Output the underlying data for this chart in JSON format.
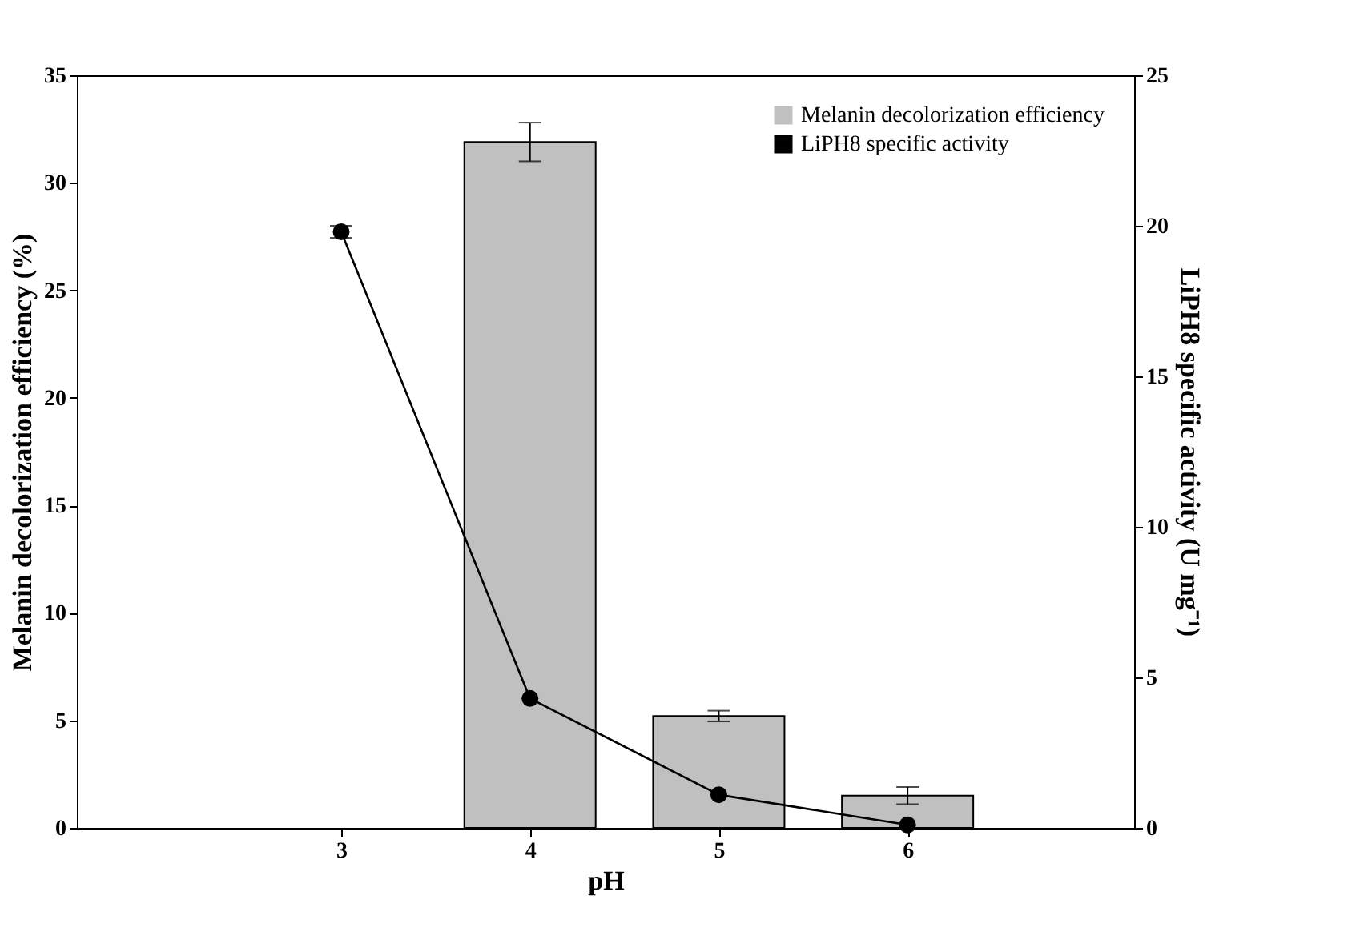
{
  "chart_data": {
    "type": "bar",
    "x": [
      3,
      4,
      5,
      6
    ],
    "xlim": [
      1.6,
      7.2
    ],
    "xticks": [
      3,
      4,
      5,
      6
    ],
    "xlabel": "pH",
    "ylabel": "Melanin decolorization efficiency (%)",
    "y2label": "LiPH8 specific activity (U mg⁻¹)",
    "ylim": [
      0,
      35
    ],
    "yticks": [
      0,
      5,
      10,
      15,
      20,
      25,
      30,
      35
    ],
    "y2lim": [
      0,
      25
    ],
    "y2ticks": [
      0,
      5,
      10,
      15,
      20,
      25
    ],
    "legend": "top right",
    "grid": false,
    "marker": "circle",
    "line_style": "solid",
    "series": [
      {
        "name": "Melanin decolorization efficiency",
        "color": "#c0c0c0",
        "values": [
          null,
          31.9,
          5.2,
          1.5
        ],
        "errors": [
          null,
          0.9,
          0.25,
          0.4
        ]
      },
      {
        "name": "LiPH8 specific activity",
        "type": "line",
        "axis": "y2",
        "color": "#000000",
        "values": [
          19.8,
          4.3,
          1.1,
          0.1
        ],
        "errors": [
          0.2,
          null,
          null,
          null
        ]
      }
    ]
  }
}
